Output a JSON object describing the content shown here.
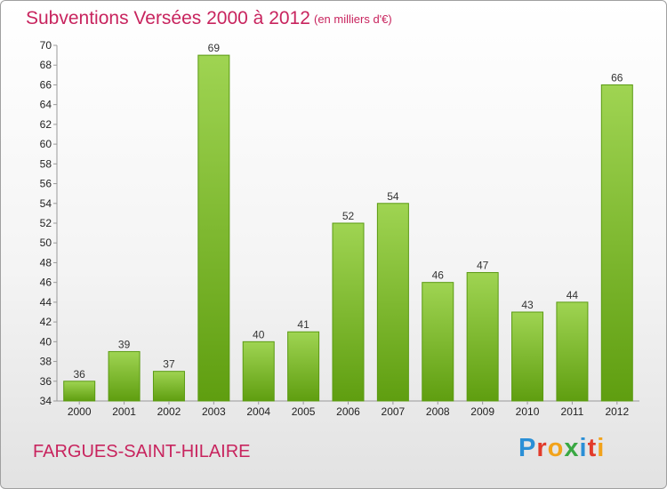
{
  "header": {
    "title": "Subventions Versées 2000 à 2012",
    "subtitle": "(en milliers d'€)"
  },
  "footer": {
    "commune": "FARGUES-SAINT-HILAIRE",
    "logo": "Proxiti"
  },
  "colors": {
    "bar_top": "#9fd452",
    "bar_bottom": "#5f9e10",
    "title": "#c8245e"
  },
  "chart_data": {
    "type": "bar",
    "title": "Subventions Versées 2000 à 2012",
    "subtitle": "(en milliers d'€)",
    "xlabel": "",
    "ylabel": "",
    "categories": [
      "2000",
      "2001",
      "2002",
      "2003",
      "2004",
      "2005",
      "2006",
      "2007",
      "2008",
      "2009",
      "2010",
      "2011",
      "2012"
    ],
    "values": [
      36,
      39,
      37,
      69,
      40,
      41,
      52,
      54,
      46,
      47,
      43,
      44,
      66
    ],
    "ylim": [
      34,
      70
    ],
    "yticks": [
      34,
      36,
      38,
      40,
      42,
      44,
      46,
      48,
      50,
      52,
      54,
      56,
      58,
      60,
      62,
      64,
      66,
      68,
      70
    ],
    "grid": false,
    "legend": "none"
  }
}
